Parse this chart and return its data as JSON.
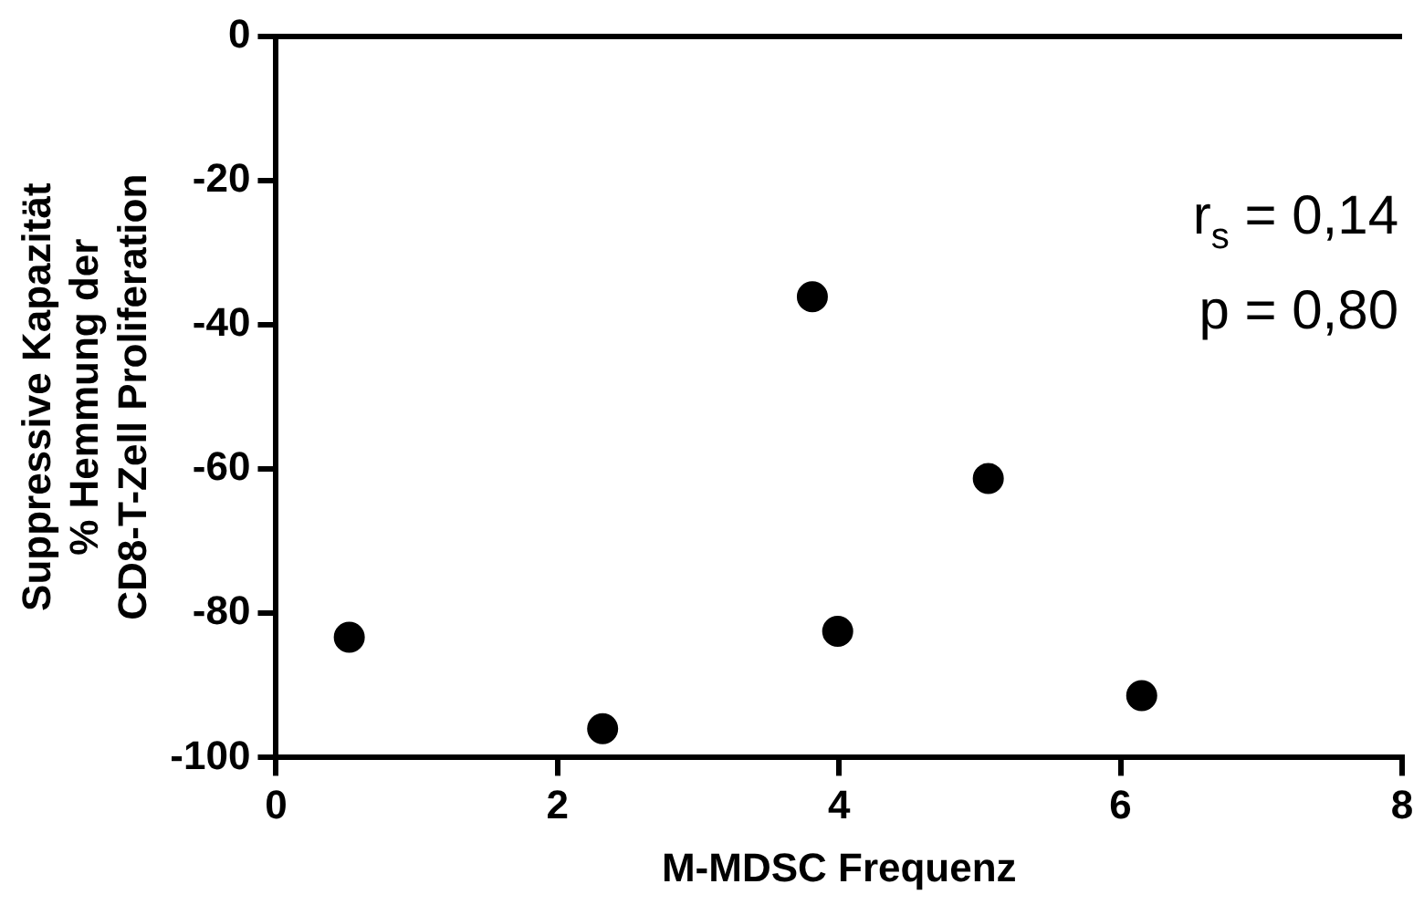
{
  "chart_data": {
    "type": "scatter",
    "xlabel": "M-MDSC Frequenz",
    "ylabel": "Suppressive Kapazität\n% Hemmung der\nCD8-T-Zell Proliferation",
    "x": [
      0.52,
      2.32,
      3.81,
      3.99,
      5.06,
      6.15
    ],
    "series": [
      {
        "color": "#000000",
        "values": [
          -83.3,
          -96.0,
          -36.1,
          -82.5,
          -61.3,
          -91.4
        ]
      }
    ],
    "xlim": [
      0,
      8
    ],
    "xticks": [
      0,
      2,
      4,
      6,
      8
    ],
    "ylim": [
      -100,
      0
    ],
    "yticks": [
      -100,
      -80,
      -60,
      -40,
      -20,
      0
    ],
    "ref_lines": [
      {
        "axis": "y",
        "value": 0,
        "color": "#000000"
      }
    ],
    "annotations": [
      "r$_{s}$ = 0,14",
      "p = 0,80"
    ],
    "grid": false,
    "legend": false,
    "marker": "circle"
  }
}
